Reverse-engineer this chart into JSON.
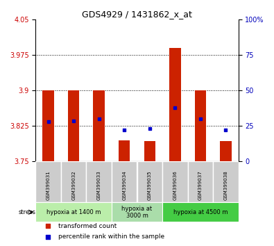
{
  "title": "GDS4929 / 1431862_x_at",
  "samples": [
    "GSM399031",
    "GSM399032",
    "GSM399033",
    "GSM399034",
    "GSM399035",
    "GSM399036",
    "GSM399037",
    "GSM399038"
  ],
  "bar_values": [
    3.9,
    3.9,
    3.9,
    3.795,
    3.793,
    3.99,
    3.9,
    3.793
  ],
  "percentile_values": [
    28.0,
    28.5,
    30.0,
    22.0,
    23.0,
    38.0,
    30.0,
    22.0
  ],
  "ymin": 3.75,
  "ymax": 4.05,
  "yticks": [
    3.75,
    3.825,
    3.9,
    3.975,
    4.05
  ],
  "ytick_labels": [
    "3.75",
    "3.825",
    "3.9",
    "3.975",
    "4.05"
  ],
  "y2min": 0,
  "y2max": 100,
  "y2ticks": [
    0,
    25,
    50,
    75,
    100
  ],
  "y2tick_labels": [
    "0",
    "25",
    "50",
    "75",
    "100%"
  ],
  "dotted_yticks": [
    3.825,
    3.9,
    3.975
  ],
  "bar_color": "#cc2200",
  "dot_color": "#0000cc",
  "bar_bottom": 3.75,
  "groups": [
    {
      "label": "hypoxia at 1400 m",
      "start": 0,
      "end": 2,
      "color": "#bbeeaa"
    },
    {
      "label": "hypoxia at\n3000 m",
      "start": 3,
      "end": 4,
      "color": "#aaddaa"
    },
    {
      "label": "hypoxia at 4500 m",
      "start": 5,
      "end": 7,
      "color": "#44cc44"
    }
  ],
  "bar_width": 0.45,
  "xlabel_color": "#cc0000",
  "ylabel_color": "#0000bb",
  "bg_color": "#ffffff",
  "tick_area_bg": "#cccccc",
  "title_fontsize": 9,
  "tick_fontsize": 7,
  "sample_fontsize": 5,
  "group_fontsize": 6,
  "legend_fontsize": 6.5
}
